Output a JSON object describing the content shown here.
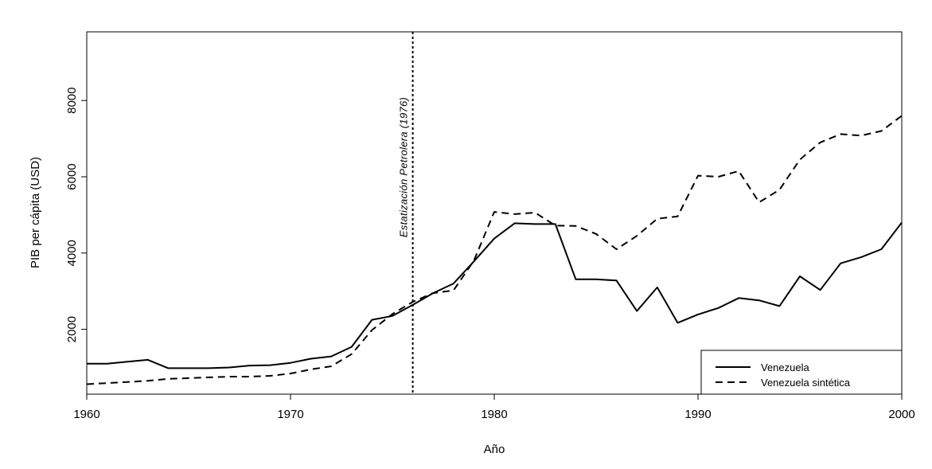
{
  "chart_data": {
    "type": "line",
    "title": "",
    "xlabel": "Año",
    "ylabel": "PIB per cápita (USD)",
    "xlim": [
      1960,
      2000
    ],
    "ylim": [
      300,
      9800
    ],
    "x_ticks": [
      1960,
      1970,
      1980,
      1990,
      2000
    ],
    "y_ticks": [
      2000,
      4000,
      6000,
      8000
    ],
    "x": [
      1960,
      1961,
      1962,
      1963,
      1964,
      1965,
      1966,
      1967,
      1968,
      1969,
      1970,
      1971,
      1972,
      1973,
      1974,
      1975,
      1976,
      1977,
      1978,
      1979,
      1980,
      1981,
      1982,
      1983,
      1984,
      1985,
      1986,
      1987,
      1988,
      1989,
      1990,
      1991,
      1992,
      1993,
      1994,
      1995,
      1996,
      1997,
      1998,
      1999,
      2000
    ],
    "series": [
      {
        "name": "Venezuela",
        "line_style": "solid",
        "color": "#000000",
        "values": [
          1100,
          1100,
          1150,
          1200,
          980,
          980,
          980,
          1000,
          1050,
          1060,
          1120,
          1230,
          1290,
          1540,
          2250,
          2350,
          2640,
          2950,
          3200,
          3780,
          4380,
          4780,
          4760,
          4760,
          3310,
          3310,
          3280,
          2480,
          3100,
          2170,
          2390,
          2560,
          2820,
          2760,
          2610,
          3390,
          3030,
          3730,
          3890,
          4100,
          4800
        ]
      },
      {
        "name": "Venezuela sintética",
        "line_style": "dashed",
        "color": "#000000",
        "values": [
          560,
          590,
          620,
          650,
          700,
          720,
          740,
          760,
          760,
          780,
          840,
          950,
          1030,
          1350,
          1980,
          2400,
          2720,
          2950,
          3020,
          3800,
          5080,
          5020,
          5060,
          4720,
          4710,
          4500,
          4100,
          4450,
          4900,
          4960,
          6030,
          6000,
          6150,
          5330,
          5660,
          6450,
          6900,
          7120,
          7080,
          7200,
          7600
        ]
      }
    ],
    "vline": {
      "x": 1976,
      "label": "Estatización Petrolera (1976)",
      "line_style": "dotted"
    },
    "legend_position": "bottom-right",
    "grid": false
  }
}
